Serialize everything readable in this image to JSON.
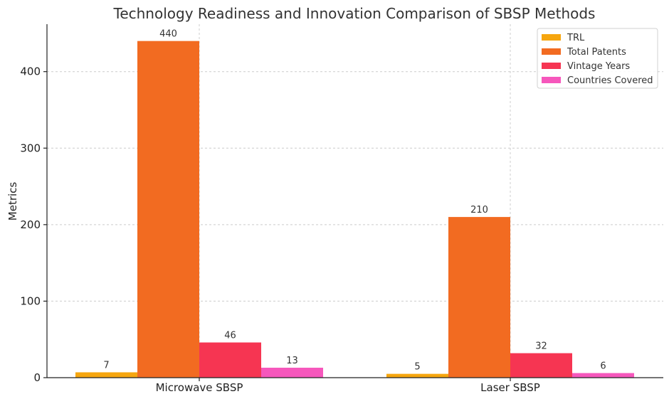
{
  "chart_data": {
    "type": "bar",
    "title": "Technology Readiness and Innovation Comparison of SBSP Methods",
    "xlabel": "",
    "ylabel": "Metrics",
    "categories": [
      "Microwave SBSP",
      "Laser SBSP"
    ],
    "series": [
      {
        "name": "TRL",
        "values": [
          7,
          5
        ],
        "color": "#f6a60f"
      },
      {
        "name": "Total Patents",
        "values": [
          440,
          210
        ],
        "color": "#f26b21"
      },
      {
        "name": "Vintage Years",
        "values": [
          46,
          32
        ],
        "color": "#f63552"
      },
      {
        "name": "Countries Covered",
        "values": [
          13,
          6
        ],
        "color": "#f657bc"
      }
    ],
    "ylim": [
      0,
      462
    ],
    "yticks": [
      0,
      100,
      200,
      300,
      400
    ],
    "grid": true,
    "legend": "top-right"
  }
}
